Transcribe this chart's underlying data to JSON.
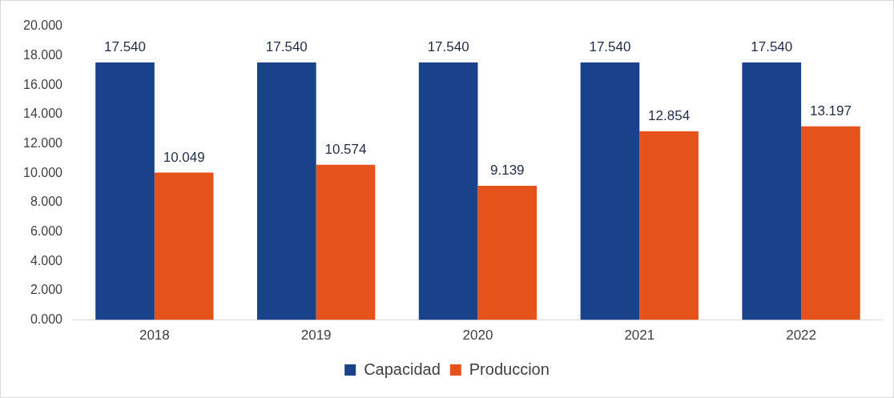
{
  "chart_data": {
    "type": "bar",
    "categories": [
      "2018",
      "2019",
      "2020",
      "2021",
      "2022"
    ],
    "series": [
      {
        "name": "Capacidad",
        "color": "#1a428a",
        "values": [
          17.54,
          17.54,
          17.54,
          17.54,
          17.54
        ],
        "value_labels": [
          "17.540",
          "17.540",
          "17.540",
          "17.540",
          "17.540"
        ]
      },
      {
        "name": "Produccion",
        "color": "#e5531b",
        "values": [
          10.049,
          10.574,
          9.139,
          12.854,
          13.197
        ],
        "value_labels": [
          "10.049",
          "10.574",
          "9.139",
          "12.854",
          "13.197"
        ]
      }
    ],
    "ylim": [
      0,
      20
    ],
    "yticks": [
      {
        "value": 0,
        "label": "0.000"
      },
      {
        "value": 2,
        "label": "2.000"
      },
      {
        "value": 4,
        "label": "4.000"
      },
      {
        "value": 6,
        "label": "6.000"
      },
      {
        "value": 8,
        "label": "8.000"
      },
      {
        "value": 10,
        "label": "10.000"
      },
      {
        "value": 12,
        "label": "12.000"
      },
      {
        "value": 14,
        "label": "14.000"
      },
      {
        "value": 16,
        "label": "16.000"
      },
      {
        "value": 18,
        "label": "18.000"
      },
      {
        "value": 20,
        "label": "20.000"
      }
    ],
    "grid": false,
    "legend": "bottom"
  }
}
